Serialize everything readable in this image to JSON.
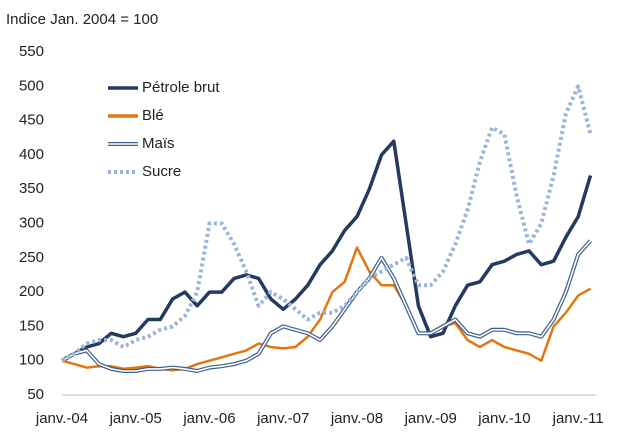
{
  "chart_data": {
    "type": "line",
    "subtitle": "Indice Jan. 2004 = 100",
    "categories": [
      "janv.-04",
      null,
      null,
      null,
      null,
      null,
      "janv.-05",
      null,
      null,
      null,
      null,
      null,
      "janv.-06",
      null,
      null,
      null,
      null,
      null,
      "janv.-07",
      null,
      null,
      null,
      null,
      null,
      "janv.-08",
      null,
      null,
      null,
      null,
      null,
      "janv.-09",
      null,
      null,
      null,
      null,
      null,
      "janv.-10",
      null,
      null,
      null,
      null,
      null,
      "janv.-11",
      null
    ],
    "series": [
      {
        "name": "Pétrole brut",
        "color": "#243a5e",
        "line_style": "solid",
        "values": [
          100,
          110,
          120,
          125,
          140,
          135,
          140,
          160,
          160,
          190,
          200,
          180,
          200,
          200,
          220,
          225,
          220,
          190,
          175,
          190,
          210,
          240,
          260,
          290,
          310,
          350,
          400,
          420,
          300,
          180,
          135,
          140,
          180,
          210,
          215,
          240,
          245,
          255,
          260,
          240,
          245,
          280,
          310,
          370
        ]
      },
      {
        "name": "Blé",
        "color": "#e3760f",
        "line_style": "solid",
        "values": [
          100,
          95,
          90,
          92,
          92,
          88,
          90,
          92,
          88,
          86,
          88,
          95,
          100,
          105,
          110,
          115,
          125,
          120,
          118,
          120,
          135,
          160,
          200,
          215,
          265,
          230,
          210,
          210,
          180,
          140,
          140,
          150,
          155,
          130,
          120,
          130,
          120,
          115,
          110,
          100,
          150,
          170,
          195,
          205
        ]
      },
      {
        "name": "Maïs",
        "color": "#3e5f8a",
        "line_style": "double",
        "values": [
          100,
          110,
          115,
          95,
          88,
          85,
          85,
          88,
          88,
          90,
          88,
          85,
          90,
          92,
          95,
          100,
          110,
          140,
          150,
          145,
          140,
          130,
          150,
          175,
          200,
          220,
          250,
          220,
          180,
          140,
          140,
          150,
          160,
          140,
          135,
          145,
          145,
          140,
          140,
          135,
          160,
          200,
          255,
          275
        ]
      },
      {
        "name": "Sucre",
        "color": "#9ab5d8",
        "line_style": "dotted",
        "values": [
          100,
          110,
          125,
          130,
          130,
          120,
          130,
          135,
          145,
          150,
          165,
          200,
          300,
          300,
          270,
          230,
          180,
          200,
          190,
          175,
          160,
          170,
          170,
          180,
          200,
          220,
          230,
          240,
          250,
          210,
          210,
          230,
          270,
          320,
          390,
          440,
          430,
          340,
          270,
          300,
          370,
          460,
          500,
          430
        ]
      }
    ],
    "ylim": [
      50,
      550
    ],
    "yticks": [
      50,
      100,
      150,
      200,
      250,
      300,
      350,
      400,
      450,
      500,
      550
    ],
    "grid": false,
    "legend": "upper left"
  }
}
